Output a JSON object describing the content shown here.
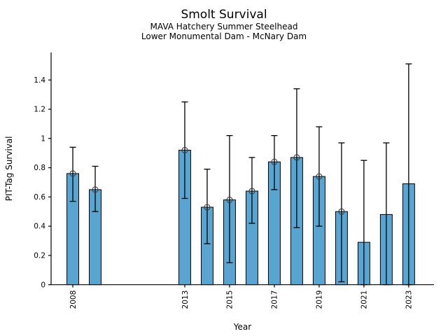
{
  "title": "Smolt Survival",
  "subtitle_line1": "MAVA Hatchery Summer Steelhead",
  "subtitle_line2": "Lower Monumental Dam - McNary Dam",
  "chart_data": {
    "type": "bar",
    "title": "Smolt Survival",
    "subtitle": [
      "MAVA Hatchery Summer Steelhead",
      "Lower Monumental Dam - McNary Dam"
    ],
    "xlabel": "Year",
    "ylabel": "PIT-Tag Survival",
    "x": [
      2008,
      2009,
      2013,
      2014,
      2015,
      2016,
      2017,
      2018,
      2019,
      2020,
      2021,
      2022,
      2023
    ],
    "values": [
      0.76,
      0.65,
      0.92,
      0.53,
      0.58,
      0.64,
      0.84,
      0.87,
      0.74,
      0.5,
      0.29,
      0.48,
      0.69
    ],
    "error_low": [
      0.57,
      0.5,
      0.59,
      0.28,
      0.15,
      0.42,
      0.65,
      0.39,
      0.4,
      0.02,
      0.0,
      0.0,
      0.0
    ],
    "error_high": [
      0.94,
      0.81,
      1.25,
      0.79,
      1.02,
      0.87,
      1.02,
      1.34,
      1.08,
      0.97,
      0.85,
      0.97,
      1.51
    ],
    "point_marker": [
      true,
      true,
      true,
      true,
      true,
      true,
      true,
      true,
      true,
      true,
      false,
      false,
      false
    ],
    "xticks": [
      2008,
      2013,
      2015,
      2017,
      2019,
      2021,
      2023
    ],
    "xtick_labels": [
      "2008",
      "2013",
      "2015",
      "2017",
      "2019",
      "2021",
      "2023"
    ],
    "yticks": [
      0,
      0.2,
      0.4,
      0.6,
      0.8,
      1.0,
      1.2,
      1.4
    ],
    "ytick_labels": [
      "0",
      "0.2",
      "0.4",
      "0.6",
      "0.8",
      "1",
      "1.2",
      "1.4"
    ],
    "xlim": [
      2007.03,
      2024.13
    ],
    "ylim": [
      0,
      1.588
    ],
    "bar_width_years": 0.53,
    "bar_color": "#59a5d1",
    "bar_edge_color": "#000000",
    "error_color": "#000000",
    "marker_edge_color": "#3a3a3a",
    "grid": false,
    "legend": null
  }
}
